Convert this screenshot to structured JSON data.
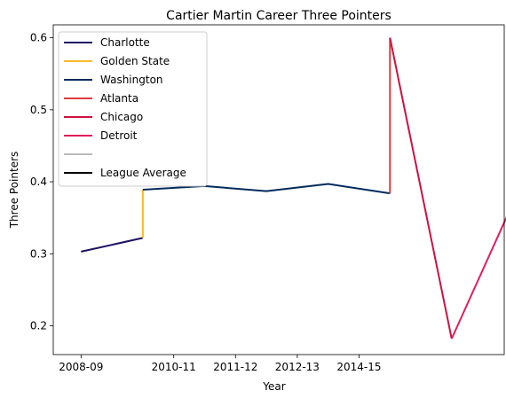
{
  "chart_data": {
    "type": "line",
    "title": "Cartier Martin Career Three Pointers",
    "xlabel": "Year",
    "ylabel": "Three Pointers",
    "xlim": [
      2008.55,
      2015.85
    ],
    "ylim": [
      0.16,
      0.618
    ],
    "x_ticks": [
      {
        "value": 2009.0,
        "label": "2008-09"
      },
      {
        "value": 2010.5,
        "label": "2010-11"
      },
      {
        "value": 2011.5,
        "label": "2011-12"
      },
      {
        "value": 2012.5,
        "label": "2012-13"
      },
      {
        "value": 2013.5,
        "label": "2014-15"
      }
    ],
    "y_ticks": [
      0.2,
      0.3,
      0.4,
      0.5,
      0.6
    ],
    "grid": false,
    "legend_position": "top-left",
    "series": [
      {
        "name": "Charlotte",
        "color": "#1d1160",
        "points": [
          [
            2009.0,
            0.303
          ],
          [
            2010.0,
            0.322
          ]
        ]
      },
      {
        "name": "Golden State",
        "color": "#fdb927",
        "points": [
          [
            2010.0,
            0.322
          ],
          [
            2010.0,
            0.389
          ]
        ]
      },
      {
        "name": "Washington",
        "color": "#002b5c",
        "points": [
          [
            2010.0,
            0.389
          ],
          [
            2011.0,
            0.394
          ],
          [
            2012.0,
            0.387
          ],
          [
            2013.0,
            0.397
          ],
          [
            2014.0,
            0.384
          ]
        ]
      },
      {
        "name": "Atlanta",
        "color": "#e03a3e",
        "points": [
          [
            2014.0,
            0.384
          ],
          [
            2014.0,
            0.6
          ]
        ]
      },
      {
        "name": "Chicago",
        "color": "#ce1141",
        "points": [
          [
            2014.0,
            0.6
          ],
          [
            2015.0,
            0.182
          ]
        ]
      },
      {
        "name": "Detroit",
        "color": "#e01e5a",
        "points": [
          [
            2015.0,
            0.182
          ],
          [
            2016.0,
            0.372
          ]
        ]
      },
      {
        "name": "",
        "color": "#bbbbbb",
        "points": []
      },
      {
        "name": "League Average",
        "color": "#000000",
        "points": []
      }
    ]
  }
}
